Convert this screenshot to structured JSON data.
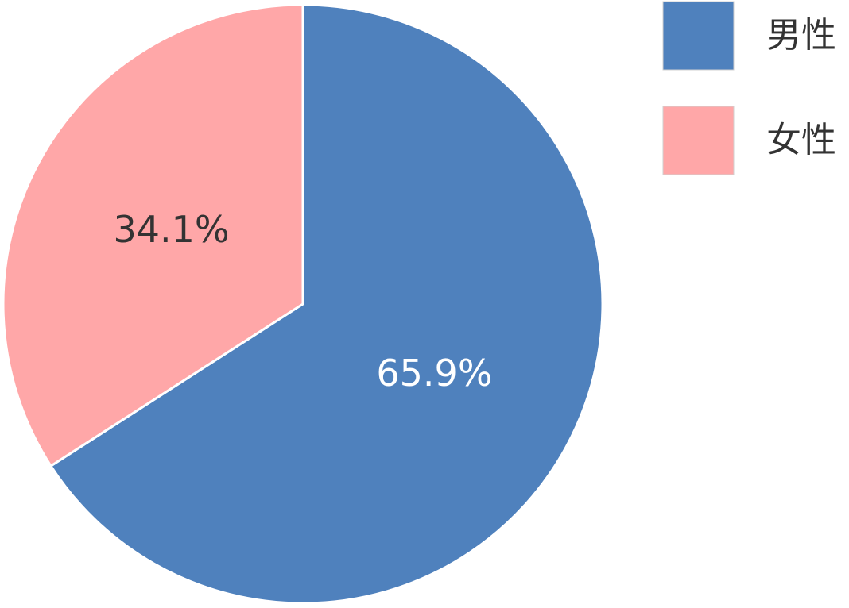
{
  "chart_data": {
    "type": "pie",
    "categories": [
      "男性",
      "女性"
    ],
    "values": [
      65.9,
      34.1
    ],
    "value_labels": [
      "65.9%",
      "34.1%"
    ],
    "colors": [
      "#4f81bd",
      "#ffa7a8"
    ],
    "legend": "top-right"
  }
}
